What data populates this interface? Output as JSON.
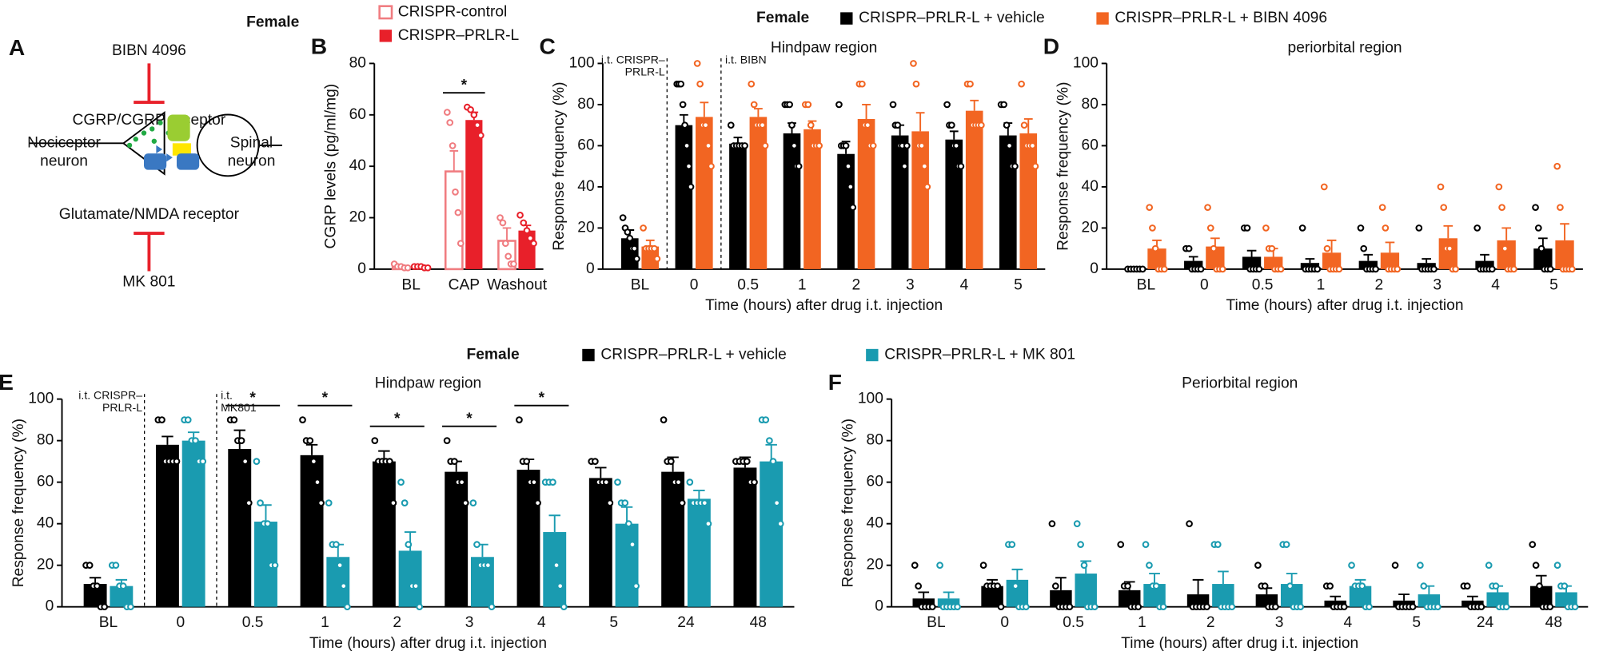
{
  "diagram": {
    "panel": "A",
    "inhibitor_top": "BIBN 4096",
    "receptor_top": "CGRP/CGRP receptor",
    "left_neuron": [
      "Nociceptor",
      "neuron"
    ],
    "right_neuron": [
      "Spinal",
      "neuron"
    ],
    "receptor_bottom": "Glutamate/NMDA receptor",
    "inhibitor_bottom": "MK 801"
  },
  "chart_data": [
    {
      "type": "bar",
      "panel": "B",
      "legend_title": "Female",
      "ylabel": "CGRP levels (pg/ml/mg)",
      "categories": [
        "BL",
        "CAP",
        "Washout"
      ],
      "ylim": [
        0,
        80
      ],
      "yticks": [
        0,
        20,
        40,
        60,
        80
      ],
      "significance": [
        null,
        "*",
        null
      ],
      "series": [
        {
          "name": "CRISPR-control",
          "color": "#f07c80",
          "filled": false,
          "values": [
            1,
            38,
            11
          ],
          "errors": [
            0.5,
            8,
            5
          ],
          "points": [
            [
              2,
              1,
              1,
              0.5,
              0.5
            ],
            [
              61,
              57,
              48,
              30,
              22,
              10
            ],
            [
              20,
              18,
              10,
              5,
              2,
              2
            ]
          ]
        },
        {
          "name": "CRISPR–PRLR-L",
          "color": "#e8202a",
          "filled": true,
          "values": [
            1,
            58,
            15
          ],
          "errors": [
            0.5,
            3,
            2
          ],
          "points": [
            [
              1,
              1,
              1,
              0.5,
              0.5
            ],
            [
              63,
              62,
              60,
              56,
              52
            ],
            [
              21,
              18,
              15,
              12,
              10
            ]
          ]
        }
      ]
    },
    {
      "type": "bar",
      "panel": "C",
      "legend_title": "Female",
      "title": "Hindpaw region",
      "ylabel": "Response frequency (%)",
      "xlabel": "Time (hours) after drug i.t. injection",
      "annotations": [
        [
          "i.t. CRISPR–",
          "PRLR-L"
        ],
        [
          "i.t. BIBN"
        ]
      ],
      "categories": [
        "BL",
        "0",
        "0.5",
        "1",
        "2",
        "3",
        "4",
        "5"
      ],
      "ylim": [
        0,
        100
      ],
      "yticks": [
        0,
        20,
        40,
        60,
        80,
        100
      ],
      "series": [
        {
          "name": "CRISPR–PRLR-L + vehicle",
          "color": "#000000",
          "filled": true,
          "values": [
            15,
            70,
            61,
            66,
            56,
            65,
            63,
            65
          ],
          "errors": [
            4,
            5,
            3,
            5,
            6,
            5,
            4,
            6
          ],
          "points": [
            [
              25,
              20,
              18,
              15,
              10,
              10,
              5
            ],
            [
              90,
              90,
              90,
              80,
              70,
              60,
              50,
              40
            ],
            [
              70,
              60,
              60,
              60,
              60,
              60
            ],
            [
              80,
              80,
              80,
              70,
              60,
              50,
              50
            ],
            [
              80,
              60,
              60,
              60,
              50,
              40,
              30
            ],
            [
              80,
              70,
              70,
              60,
              60,
              50,
              60
            ],
            [
              80,
              70,
              70,
              60,
              60,
              50,
              50
            ],
            [
              80,
              80,
              70,
              60,
              50,
              50
            ]
          ]
        },
        {
          "name": "CRISPR–PRLR-L + BIBN 4096",
          "color": "#f26522",
          "filled": true,
          "values": [
            11,
            74,
            74,
            68,
            73,
            67,
            77,
            66
          ],
          "errors": [
            3,
            7,
            4,
            4,
            7,
            9,
            5,
            7
          ],
          "points": [
            [
              20,
              10,
              10,
              10,
              10,
              5
            ],
            [
              100,
              90,
              70,
              70,
              60,
              50
            ],
            [
              90,
              80,
              70,
              70,
              70,
              60
            ],
            [
              80,
              80,
              70,
              60,
              60,
              60
            ],
            [
              90,
              90,
              70,
              70,
              60,
              60
            ],
            [
              100,
              90,
              60,
              60,
              50,
              40
            ],
            [
              90,
              90,
              70,
              70,
              70,
              70
            ],
            [
              90,
              70,
              60,
              60,
              60,
              50
            ]
          ]
        }
      ]
    },
    {
      "type": "bar",
      "panel": "D",
      "title": "periorbital region",
      "ylabel": "Response frequency (%)",
      "xlabel": "Time (hours) after drug i.t. injection",
      "categories": [
        "BL",
        "0",
        "0.5",
        "1",
        "2",
        "3",
        "4",
        "5"
      ],
      "ylim": [
        0,
        100
      ],
      "yticks": [
        0,
        20,
        40,
        60,
        80,
        100
      ],
      "series": [
        {
          "color": "#000000",
          "filled": true,
          "values": [
            0,
            4,
            6,
            3,
            4,
            3,
            4,
            10
          ],
          "errors": [
            0,
            2,
            3,
            2,
            3,
            2,
            3,
            5
          ],
          "points": [
            [
              0,
              0,
              0,
              0,
              0,
              0
            ],
            [
              10,
              10,
              0,
              0,
              0,
              0
            ],
            [
              20,
              20,
              0,
              0,
              0,
              0
            ],
            [
              20,
              0,
              0,
              0,
              0,
              0
            ],
            [
              20,
              10,
              0,
              0,
              0,
              0
            ],
            [
              20,
              0,
              0,
              0,
              0,
              0
            ],
            [
              20,
              0,
              0,
              0,
              0,
              0
            ],
            [
              30,
              20,
              10,
              0,
              0,
              0
            ]
          ]
        },
        {
          "color": "#f26522",
          "filled": true,
          "values": [
            10,
            11,
            6,
            8,
            8,
            15,
            14,
            14
          ],
          "errors": [
            4,
            4,
            4,
            6,
            5,
            6,
            6,
            8
          ],
          "points": [
            [
              30,
              20,
              10,
              0,
              0,
              0
            ],
            [
              30,
              20,
              10,
              0,
              0,
              0
            ],
            [
              20,
              10,
              10,
              0,
              0,
              0
            ],
            [
              40,
              10,
              0,
              0,
              0,
              0
            ],
            [
              30,
              20,
              0,
              0,
              0,
              0
            ],
            [
              40,
              30,
              10,
              10,
              0,
              0
            ],
            [
              40,
              30,
              10,
              0,
              0,
              0
            ],
            [
              50,
              30,
              0,
              0,
              0,
              0
            ]
          ]
        }
      ]
    },
    {
      "type": "bar",
      "panel": "E",
      "legend_title": "Female",
      "title": "Hindpaw region",
      "ylabel": "Response frequency (%)",
      "xlabel": "Time (hours) after drug i.t. injection",
      "annotations": [
        [
          "i.t. CRISPR–",
          "PRLR-L"
        ],
        [
          "i.t.",
          "MK801"
        ]
      ],
      "categories": [
        "BL",
        "0",
        "0.5",
        "1",
        "2",
        "3",
        "4",
        "5",
        "24",
        "48"
      ],
      "ylim": [
        0,
        100
      ],
      "yticks": [
        0,
        20,
        40,
        60,
        80,
        100
      ],
      "significance": [
        null,
        null,
        "*",
        "*",
        "*",
        "*",
        "*",
        null,
        null,
        null
      ],
      "series": [
        {
          "name": "CRISPR–PRLR-L + vehicle",
          "color": "#000000",
          "filled": true,
          "values": [
            11,
            78,
            76,
            73,
            70,
            65,
            66,
            62,
            65,
            67
          ],
          "errors": [
            3,
            4,
            9,
            5,
            5,
            5,
            5,
            5,
            7,
            5
          ],
          "points": [
            [
              20,
              20,
              10,
              10,
              0,
              0
            ],
            [
              90,
              90,
              70,
              70,
              70,
              70
            ],
            [
              90,
              90,
              80,
              80,
              70,
              50
            ],
            [
              90,
              80,
              80,
              70,
              60,
              50
            ],
            [
              80,
              70,
              70,
              70,
              70,
              50
            ],
            [
              80,
              70,
              70,
              60,
              60,
              50
            ],
            [
              90,
              70,
              70,
              60,
              60,
              50
            ],
            [
              70,
              70,
              60,
              60,
              60,
              50
            ],
            [
              90,
              70,
              70,
              60,
              60,
              50
            ],
            [
              70,
              70,
              70,
              70,
              60,
              60
            ]
          ]
        },
        {
          "name": "CRISPR–PRLR-L + MK 801",
          "color": "#1a9bb0",
          "filled": true,
          "values": [
            10,
            80,
            41,
            24,
            27,
            24,
            36,
            40,
            52,
            70
          ],
          "errors": [
            3,
            4,
            8,
            6,
            9,
            6,
            8,
            8,
            4,
            8
          ],
          "points": [
            [
              20,
              20,
              10,
              10,
              0,
              0
            ],
            [
              90,
              90,
              80,
              80,
              70,
              70
            ],
            [
              70,
              50,
              40,
              40,
              20,
              20
            ],
            [
              50,
              30,
              30,
              20,
              10,
              0
            ],
            [
              60,
              50,
              30,
              10,
              10,
              0
            ],
            [
              50,
              30,
              20,
              20,
              20,
              0
            ],
            [
              60,
              60,
              60,
              20,
              10,
              0
            ],
            [
              60,
              50,
              50,
              40,
              30,
              10
            ],
            [
              60,
              50,
              50,
              50,
              50,
              40
            ],
            [
              90,
              90,
              80,
              70,
              50,
              40
            ]
          ]
        }
      ]
    },
    {
      "type": "bar",
      "panel": "F",
      "title": "Periorbital region",
      "ylabel": "Response frequency (%)",
      "xlabel": "Time (hours) after drug i.t. injection",
      "categories": [
        "BL",
        "0",
        "0.5",
        "1",
        "2",
        "3",
        "4",
        "5",
        "24",
        "48"
      ],
      "ylim": [
        0,
        100
      ],
      "yticks": [
        0,
        20,
        40,
        60,
        80,
        100
      ],
      "series": [
        {
          "color": "#000000",
          "filled": true,
          "values": [
            4,
            10,
            8,
            8,
            6,
            6,
            3,
            3,
            3,
            10
          ],
          "errors": [
            3,
            3,
            6,
            4,
            7,
            3,
            2,
            3,
            2,
            5
          ],
          "points": [
            [
              20,
              10,
              0,
              0,
              0,
              0
            ],
            [
              20,
              10,
              10,
              10,
              10,
              0
            ],
            [
              40,
              10,
              0,
              0,
              0,
              0
            ],
            [
              30,
              10,
              10,
              0,
              0,
              0
            ],
            [
              40,
              0,
              0,
              0,
              0,
              0
            ],
            [
              20,
              10,
              10,
              0,
              0,
              0
            ],
            [
              10,
              10,
              0,
              0,
              0,
              0
            ],
            [
              20,
              0,
              0,
              0,
              0,
              0
            ],
            [
              10,
              10,
              0,
              0,
              0,
              0
            ],
            [
              30,
              20,
              10,
              0,
              0,
              0
            ]
          ]
        },
        {
          "color": "#1a9bb0",
          "filled": true,
          "values": [
            4,
            13,
            16,
            11,
            11,
            11,
            10,
            6,
            7,
            7
          ],
          "errors": [
            3,
            5,
            6,
            5,
            6,
            5,
            3,
            4,
            3,
            3
          ],
          "points": [
            [
              20,
              0,
              0,
              0,
              0,
              0
            ],
            [
              30,
              30,
              10,
              0,
              0,
              0
            ],
            [
              40,
              30,
              20,
              0,
              0,
              0
            ],
            [
              30,
              20,
              10,
              10,
              0,
              0
            ],
            [
              30,
              30,
              0,
              0,
              0,
              0
            ],
            [
              30,
              30,
              10,
              0,
              0,
              0
            ],
            [
              20,
              10,
              10,
              10,
              0,
              0
            ],
            [
              20,
              10,
              0,
              0,
              0,
              0
            ],
            [
              20,
              10,
              10,
              0,
              0,
              0
            ],
            [
              20,
              10,
              10,
              0,
              0,
              0
            ]
          ]
        }
      ]
    }
  ]
}
